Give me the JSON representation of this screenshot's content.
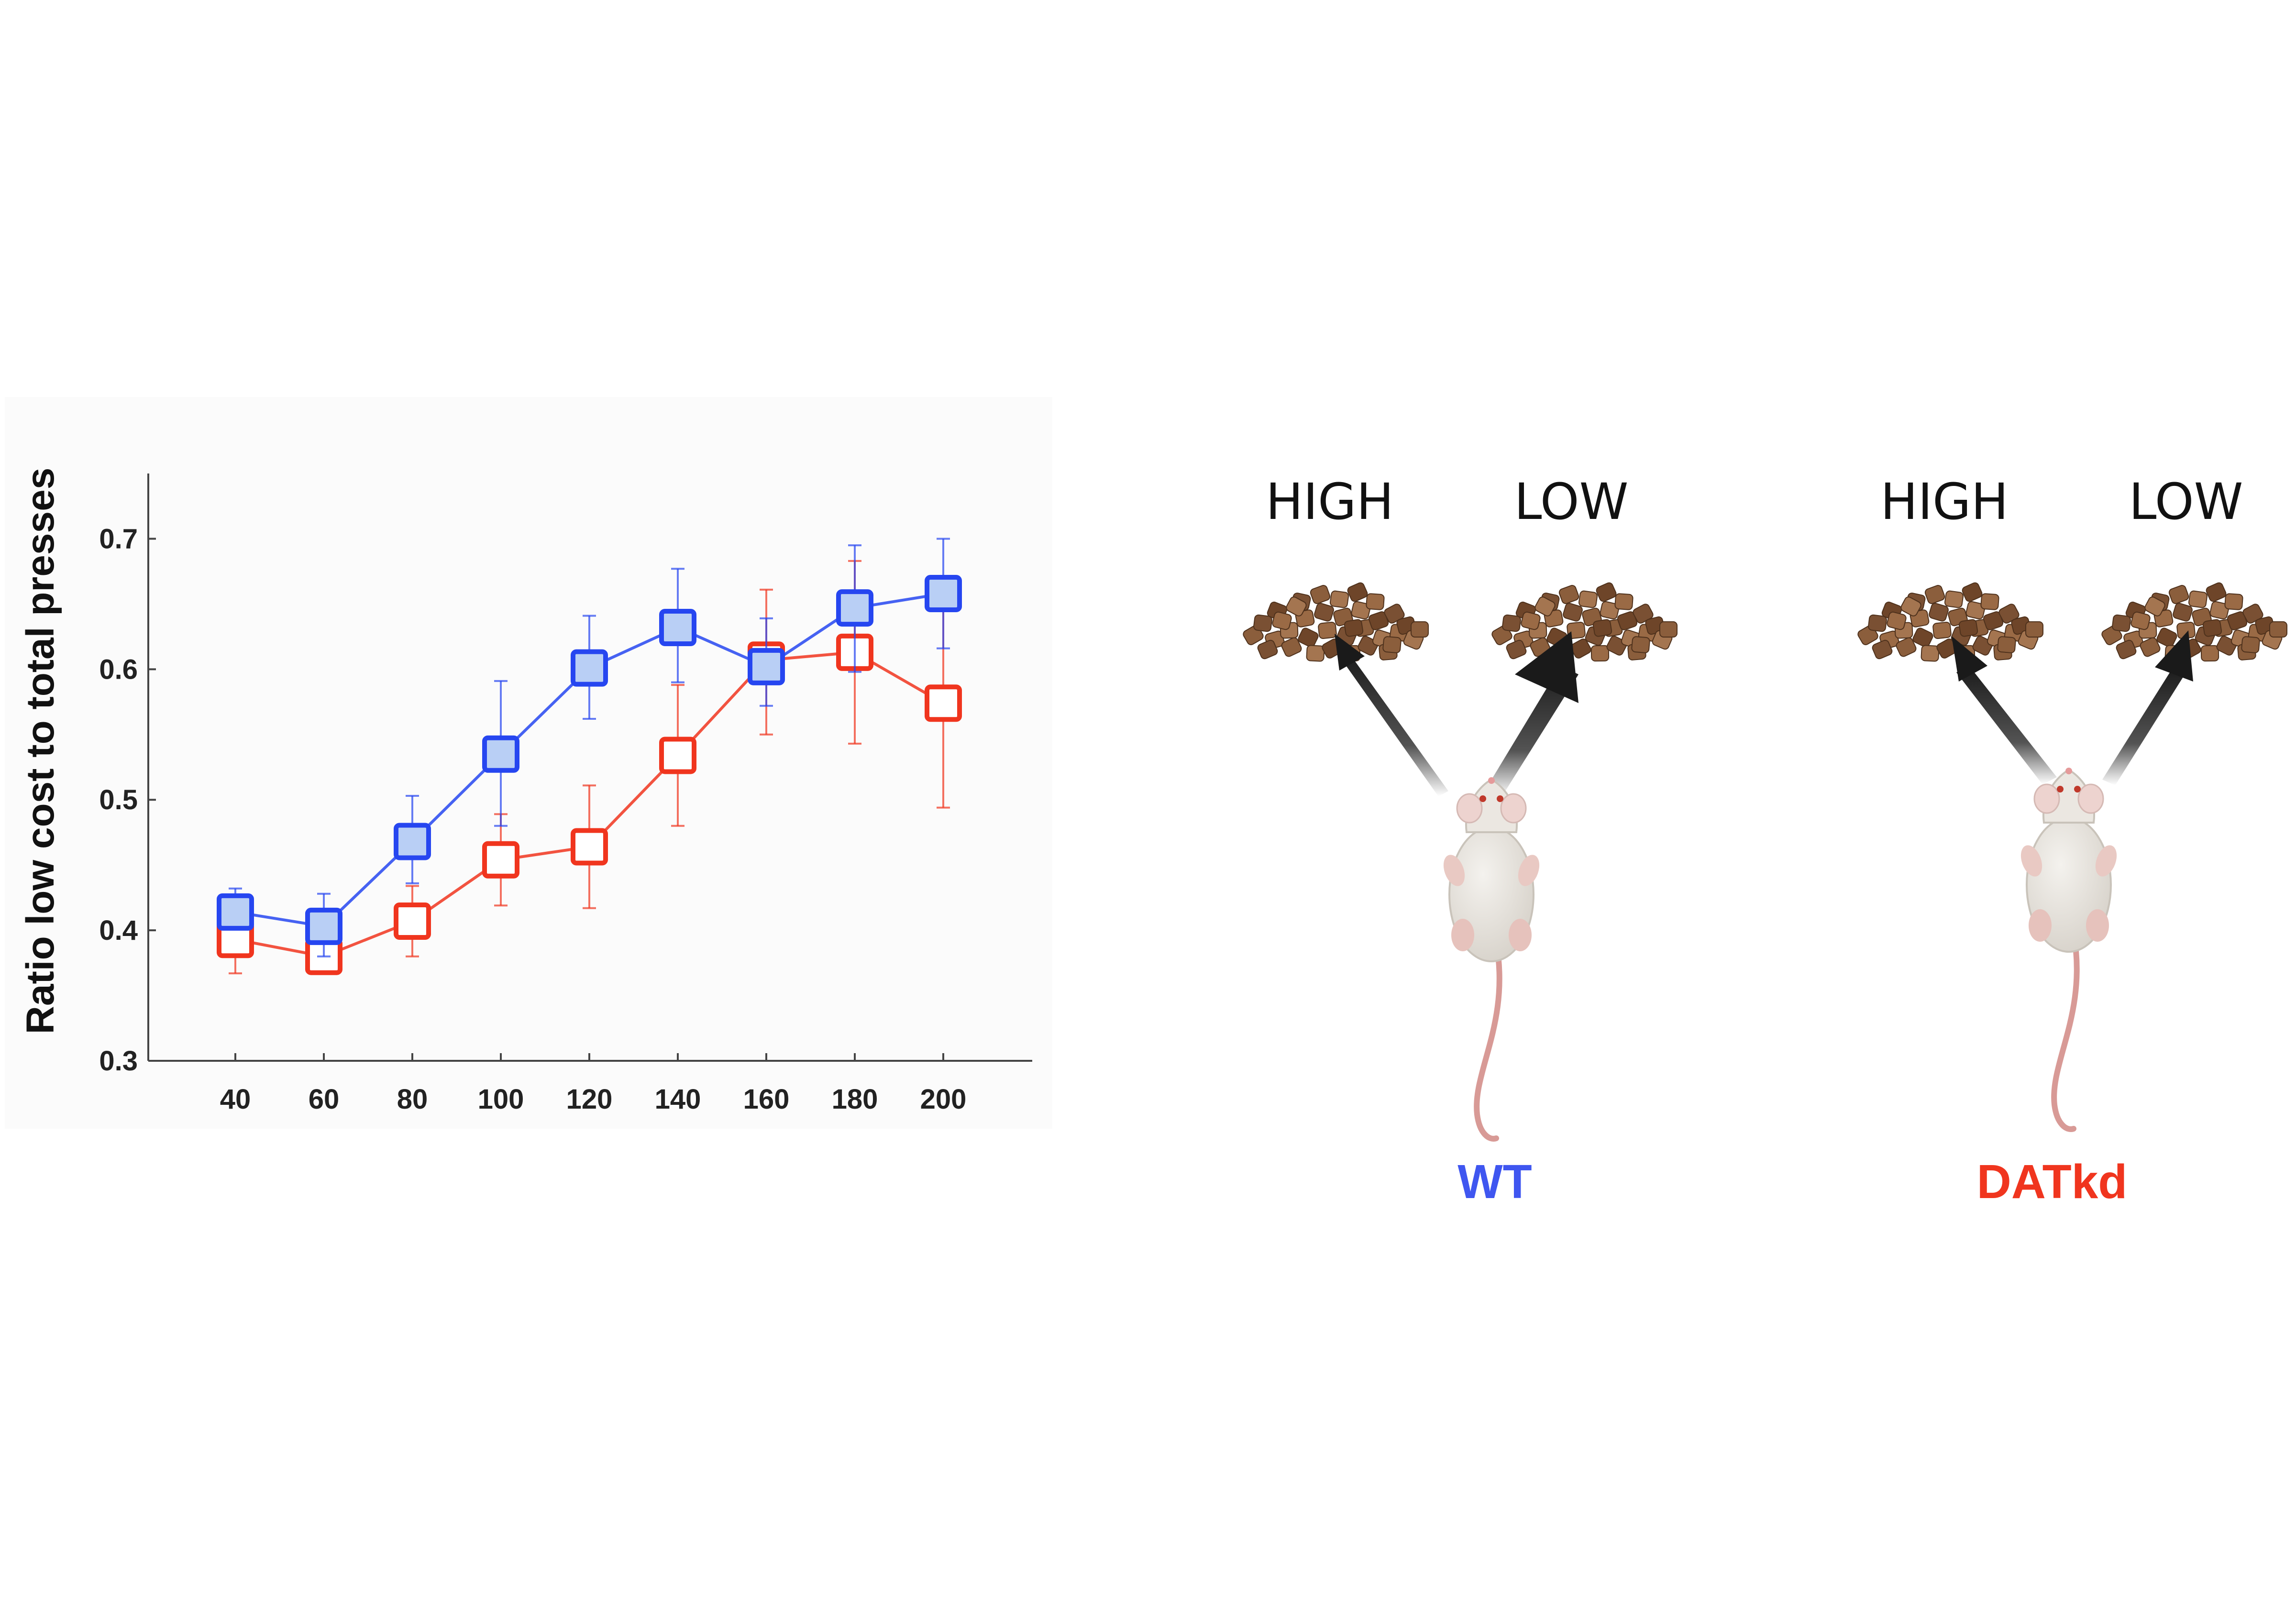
{
  "chart_data": {
    "type": "line",
    "title": "",
    "xlabel": "",
    "ylabel": "Ratio low cost to total presses",
    "x": [
      40,
      60,
      80,
      100,
      120,
      140,
      160,
      180,
      200
    ],
    "ylim": [
      0.3,
      0.75
    ],
    "yticks": [
      "0.3",
      "0.4",
      "0.5",
      "0.6",
      "0.7"
    ],
    "xticks": [
      "40",
      "60",
      "80",
      "100",
      "120",
      "140",
      "160",
      "180",
      "200"
    ],
    "grid": false,
    "series": [
      {
        "color": "#2646f0",
        "fill": "#b9cff5",
        "marker": "filled-square",
        "values": [
          0.414,
          0.403,
          0.468,
          0.535,
          0.601,
          0.632,
          0.602,
          0.647,
          0.658
        ],
        "err_low": [
          0.404,
          0.38,
          0.436,
          0.48,
          0.562,
          0.59,
          0.572,
          0.598,
          0.616
        ],
        "err_high": [
          0.432,
          0.428,
          0.503,
          0.591,
          0.641,
          0.677,
          0.639,
          0.695,
          0.7
        ]
      },
      {
        "color": "#f0351e",
        "fill": "#ffffff",
        "marker": "open-square",
        "values": [
          0.393,
          0.38,
          0.407,
          0.454,
          0.464,
          0.534,
          0.607,
          0.613,
          0.574
        ],
        "err_low": [
          0.367,
          0.368,
          0.38,
          0.419,
          0.417,
          0.48,
          0.55,
          0.543,
          0.494
        ],
        "err_high": [
          0.409,
          0.392,
          0.434,
          0.489,
          0.511,
          0.588,
          0.661,
          0.683,
          0.655
        ]
      }
    ]
  },
  "illustration": {
    "panels": [
      {
        "group_label": "WT",
        "group_color": "#3f56f0",
        "left_choice": "HIGH",
        "right_choice": "LOW",
        "left_arrow": "thin",
        "right_arrow": "thick"
      },
      {
        "group_label": "DATkd",
        "group_color": "#f0351e",
        "left_choice": "HIGH",
        "right_choice": "LOW",
        "left_arrow": "medium",
        "right_arrow": "medium"
      }
    ],
    "icons": [
      "food-pellet-pile-icon",
      "mouse-icon",
      "arrow-icon"
    ]
  }
}
